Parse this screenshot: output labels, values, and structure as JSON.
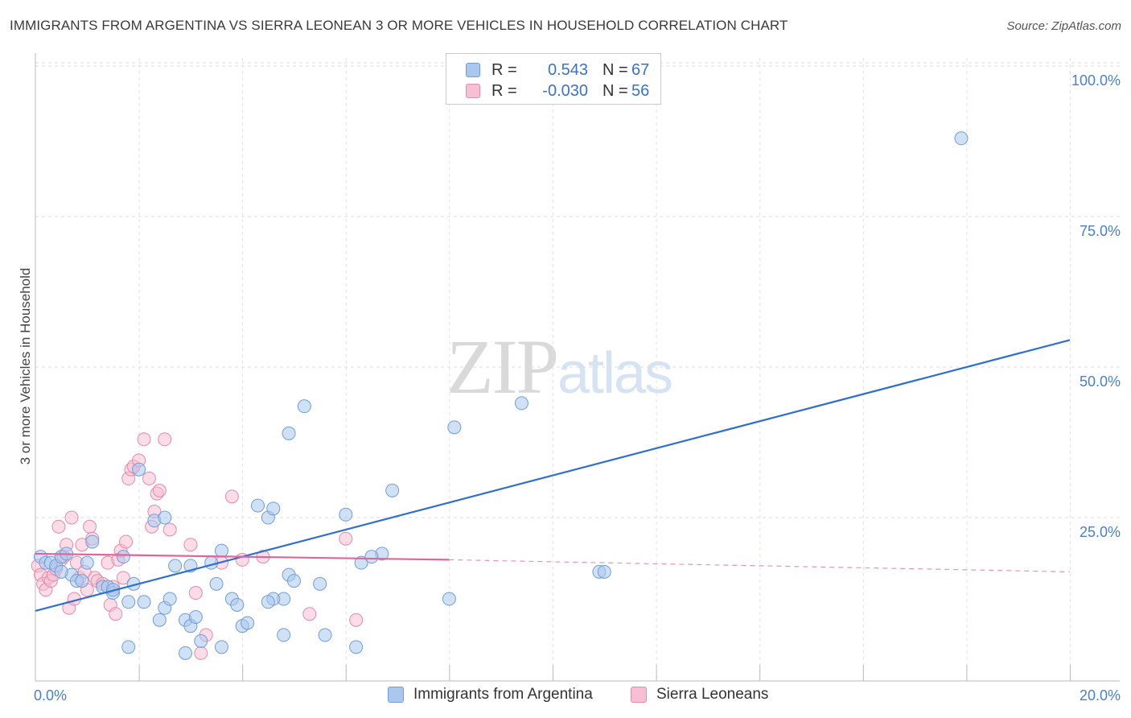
{
  "title": "IMMIGRANTS FROM ARGENTINA VS SIERRA LEONEAN 3 OR MORE VEHICLES IN HOUSEHOLD CORRELATION CHART",
  "source": "Source: ZipAtlas.com",
  "watermark": {
    "zip": "ZIP",
    "atlas": "atlas"
  },
  "legend": {
    "rows": [
      {
        "r_label": "R =",
        "r_value": "0.543",
        "n_label": "N =",
        "n_value": "67",
        "color": "#aac8ee",
        "border": "#6f9ed8"
      },
      {
        "r_label": "R =",
        "r_value": "-0.030",
        "n_label": "N =",
        "n_value": "56",
        "color": "#f7bfd3",
        "border": "#e58aaa"
      }
    ]
  },
  "bottom_legend": [
    {
      "label": "Immigrants from Argentina",
      "color": "#aac8ee",
      "border": "#6f9ed8"
    },
    {
      "label": "Sierra Leoneans",
      "color": "#f7bfd3",
      "border": "#e58aaa"
    }
  ],
  "chart_data": {
    "type": "scatter",
    "title": "IMMIGRANTS FROM ARGENTINA VS SIERRA LEONEAN 3 OR MORE VEHICLES IN HOUSEHOLD CORRELATION CHART",
    "xlabel": "",
    "ylabel": "3 or more Vehicles in Household",
    "xlim": [
      0,
      20
    ],
    "ylim": [
      0,
      100
    ],
    "x_tick_labels": [
      "0.0%",
      "20.0%"
    ],
    "y_tick_labels": [
      "25.0%",
      "50.0%",
      "75.0%",
      "100.0%"
    ],
    "y_ticks": [
      25,
      50,
      75,
      100
    ],
    "grid": true,
    "series": [
      {
        "name": "Immigrants from Argentina",
        "color": "#6f9ed8",
        "fill": "#aac8ee",
        "trend": {
          "x": [
            0,
            20
          ],
          "y": [
            11.5,
            56.5
          ],
          "color": "#2f6fcf"
        },
        "points": [
          [
            0.1,
            20.5
          ],
          [
            0.2,
            19.5
          ],
          [
            0.3,
            19.5
          ],
          [
            0.4,
            19.0
          ],
          [
            0.5,
            20.5
          ],
          [
            0.6,
            21.0
          ],
          [
            0.7,
            17.5
          ],
          [
            0.5,
            18.0
          ],
          [
            0.8,
            16.5
          ],
          [
            0.9,
            16.5
          ],
          [
            1.0,
            19.5
          ],
          [
            1.1,
            23.0
          ],
          [
            1.3,
            15.5
          ],
          [
            1.4,
            15.5
          ],
          [
            1.5,
            14.5
          ],
          [
            1.8,
            13.0
          ],
          [
            1.9,
            16.0
          ],
          [
            2.1,
            13.0
          ],
          [
            2.4,
            10.0
          ],
          [
            2.5,
            12.0
          ],
          [
            2.6,
            13.5
          ],
          [
            2.9,
            10.0
          ],
          [
            3.0,
            9.0
          ],
          [
            3.1,
            10.5
          ],
          [
            3.2,
            6.5
          ],
          [
            3.4,
            19.5
          ],
          [
            3.5,
            16.0
          ],
          [
            3.6,
            21.5
          ],
          [
            3.8,
            13.5
          ],
          [
            3.9,
            12.5
          ],
          [
            4.0,
            9.0
          ],
          [
            4.1,
            9.5
          ],
          [
            4.3,
            29.0
          ],
          [
            4.5,
            27.0
          ],
          [
            4.6,
            28.5
          ],
          [
            4.8,
            13.5
          ],
          [
            4.9,
            17.5
          ],
          [
            5.0,
            16.5
          ],
          [
            5.5,
            16.0
          ],
          [
            5.6,
            7.5
          ],
          [
            6.2,
            5.5
          ],
          [
            6.3,
            19.5
          ],
          [
            6.7,
            21.0
          ],
          [
            6.5,
            20.5
          ],
          [
            6.0,
            27.5
          ],
          [
            3.0,
            19.0
          ],
          [
            2.3,
            26.5
          ],
          [
            2.5,
            27.0
          ],
          [
            1.7,
            20.5
          ],
          [
            1.5,
            15.0
          ],
          [
            2.0,
            35.0
          ],
          [
            2.7,
            19.0
          ],
          [
            4.6,
            13.5
          ],
          [
            4.8,
            7.5
          ],
          [
            5.2,
            45.5
          ],
          [
            4.9,
            41.0
          ],
          [
            6.9,
            31.5
          ],
          [
            8.1,
            42.0
          ],
          [
            8.0,
            13.5
          ],
          [
            9.4,
            46.0
          ],
          [
            10.9,
            18.0
          ],
          [
            11.0,
            18.0
          ],
          [
            17.9,
            90.0
          ],
          [
            3.6,
            5.5
          ],
          [
            1.8,
            5.5
          ],
          [
            2.9,
            4.5
          ],
          [
            4.5,
            13.0
          ]
        ]
      },
      {
        "name": "Sierra Leoneans",
        "color": "#e58aaa",
        "fill": "#f7bfd3",
        "trend": {
          "x": [
            0,
            8
          ],
          "y": [
            21.0,
            20.0
          ],
          "color": "#e0659a",
          "dashed_to": {
            "x": 20,
            "y": 18.0
          }
        },
        "points": [
          [
            0.05,
            19.0
          ],
          [
            0.1,
            17.5
          ],
          [
            0.15,
            16.0
          ],
          [
            0.2,
            15.0
          ],
          [
            0.25,
            17.0
          ],
          [
            0.3,
            16.5
          ],
          [
            0.35,
            17.5
          ],
          [
            0.4,
            18.5
          ],
          [
            0.45,
            25.5
          ],
          [
            0.5,
            20.0
          ],
          [
            0.55,
            20.5
          ],
          [
            0.6,
            22.5
          ],
          [
            0.65,
            12.0
          ],
          [
            0.7,
            27.0
          ],
          [
            0.75,
            13.5
          ],
          [
            0.8,
            19.5
          ],
          [
            0.85,
            17.0
          ],
          [
            0.9,
            22.5
          ],
          [
            0.95,
            18.0
          ],
          [
            1.0,
            15.0
          ],
          [
            1.05,
            25.5
          ],
          [
            1.1,
            23.5
          ],
          [
            1.15,
            17.0
          ],
          [
            1.2,
            16.5
          ],
          [
            1.3,
            16.0
          ],
          [
            1.4,
            19.5
          ],
          [
            1.45,
            12.5
          ],
          [
            1.5,
            15.5
          ],
          [
            1.55,
            11.0
          ],
          [
            1.6,
            20.0
          ],
          [
            1.65,
            21.5
          ],
          [
            1.7,
            17.0
          ],
          [
            1.75,
            23.0
          ],
          [
            1.8,
            33.5
          ],
          [
            1.85,
            35.0
          ],
          [
            1.9,
            35.5
          ],
          [
            2.0,
            36.5
          ],
          [
            2.1,
            40.0
          ],
          [
            2.2,
            33.5
          ],
          [
            2.25,
            25.5
          ],
          [
            2.3,
            28.0
          ],
          [
            2.35,
            31.0
          ],
          [
            2.4,
            31.5
          ],
          [
            2.5,
            40.0
          ],
          [
            2.6,
            25.0
          ],
          [
            3.0,
            22.5
          ],
          [
            3.1,
            14.5
          ],
          [
            3.2,
            4.5
          ],
          [
            3.3,
            7.5
          ],
          [
            3.6,
            19.5
          ],
          [
            3.8,
            30.5
          ],
          [
            4.0,
            20.0
          ],
          [
            4.4,
            20.5
          ],
          [
            5.3,
            11.0
          ],
          [
            6.0,
            23.5
          ],
          [
            6.2,
            10.0
          ]
        ]
      }
    ]
  }
}
